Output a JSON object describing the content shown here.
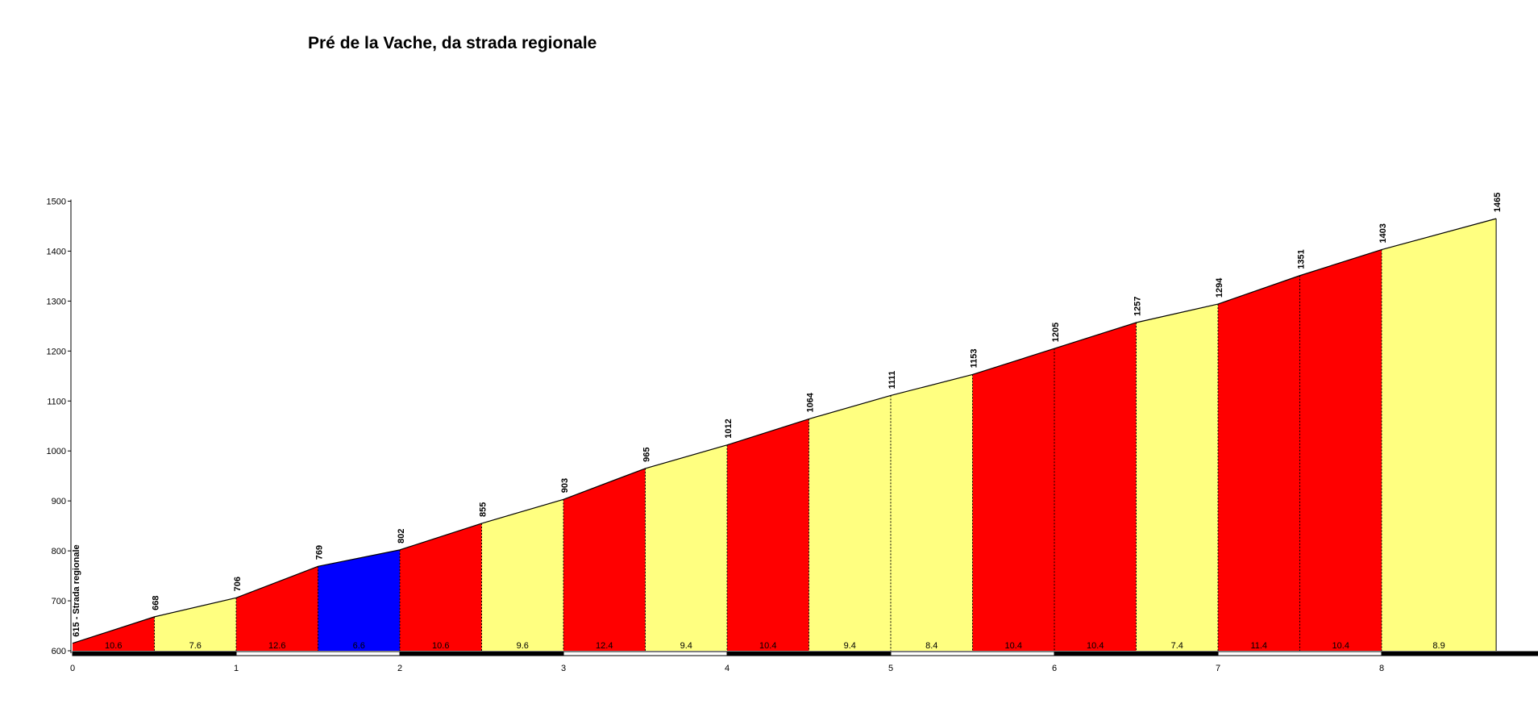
{
  "chart_data": {
    "type": "area",
    "title": "Pré de la Vache, da strada regionale",
    "xlabel": "",
    "ylabel": "",
    "xlim": [
      0,
      8.9
    ],
    "ylim": [
      600,
      1500
    ],
    "yticks": [
      600,
      700,
      800,
      900,
      1000,
      1100,
      1200,
      1300,
      1400,
      1500
    ],
    "xticks": [
      0,
      1,
      2,
      3,
      4,
      5,
      6,
      7,
      8
    ],
    "start_label": "615 - Strada regionale",
    "points": [
      {
        "x": 0,
        "y": 615,
        "label": "615 - Strada regionale"
      },
      {
        "x": 0.5,
        "y": 668,
        "label": "668"
      },
      {
        "x": 1.0,
        "y": 706,
        "label": "706"
      },
      {
        "x": 1.5,
        "y": 769,
        "label": "769"
      },
      {
        "x": 2.0,
        "y": 802,
        "label": "802"
      },
      {
        "x": 2.5,
        "y": 855,
        "label": "855"
      },
      {
        "x": 3.0,
        "y": 903,
        "label": "903"
      },
      {
        "x": 3.5,
        "y": 965,
        "label": "965"
      },
      {
        "x": 4.0,
        "y": 1012,
        "label": "1012"
      },
      {
        "x": 4.5,
        "y": 1064,
        "label": "1064"
      },
      {
        "x": 5.0,
        "y": 1111,
        "label": "1111"
      },
      {
        "x": 5.5,
        "y": 1153,
        "label": "1153"
      },
      {
        "x": 6.0,
        "y": 1205,
        "label": "1205"
      },
      {
        "x": 6.5,
        "y": 1257,
        "label": "1257"
      },
      {
        "x": 7.0,
        "y": 1294,
        "label": "1294"
      },
      {
        "x": 7.5,
        "y": 1351,
        "label": "1351"
      },
      {
        "x": 8.0,
        "y": 1403,
        "label": "1403"
      },
      {
        "x": 8.7,
        "y": 1465,
        "label": "1465"
      }
    ],
    "segments": [
      {
        "from": 0,
        "to": 0.5,
        "grade": "10.6",
        "color": "#ff0000"
      },
      {
        "from": 0.5,
        "to": 1.0,
        "grade": "7.6",
        "color": "#ffff80"
      },
      {
        "from": 1.0,
        "to": 1.5,
        "grade": "12.6",
        "color": "#ff0000"
      },
      {
        "from": 1.5,
        "to": 2.0,
        "grade": "6.6",
        "color": "#0000ff"
      },
      {
        "from": 2.0,
        "to": 2.5,
        "grade": "10.6",
        "color": "#ff0000"
      },
      {
        "from": 2.5,
        "to": 3.0,
        "grade": "9.6",
        "color": "#ffff80"
      },
      {
        "from": 3.0,
        "to": 3.5,
        "grade": "12.4",
        "color": "#ff0000"
      },
      {
        "from": 3.5,
        "to": 4.0,
        "grade": "9.4",
        "color": "#ffff80"
      },
      {
        "from": 4.0,
        "to": 4.5,
        "grade": "10.4",
        "color": "#ff0000"
      },
      {
        "from": 4.5,
        "to": 5.0,
        "grade": "9.4",
        "color": "#ffff80"
      },
      {
        "from": 5.0,
        "to": 5.5,
        "grade": "8.4",
        "color": "#ffff80"
      },
      {
        "from": 5.5,
        "to": 6.0,
        "grade": "10.4",
        "color": "#ff0000"
      },
      {
        "from": 6.0,
        "to": 6.5,
        "grade": "10.4",
        "color": "#ff0000"
      },
      {
        "from": 6.5,
        "to": 7.0,
        "grade": "7.4",
        "color": "#ffff80"
      },
      {
        "from": 7.0,
        "to": 7.5,
        "grade": "11.4",
        "color": "#ff0000"
      },
      {
        "from": 7.5,
        "to": 8.0,
        "grade": "10.4",
        "color": "#ff0000"
      },
      {
        "from": 8.0,
        "to": 8.7,
        "grade": "8.9",
        "color": "#ffff80"
      }
    ],
    "grid": false,
    "legend": "none",
    "colors": {
      "steep": "#ff0000",
      "moderate": "#ffff80",
      "easier": "#0000ff",
      "outline": "#000000",
      "baseline_dark": "#000000",
      "baseline_light": "#ffffff"
    }
  }
}
